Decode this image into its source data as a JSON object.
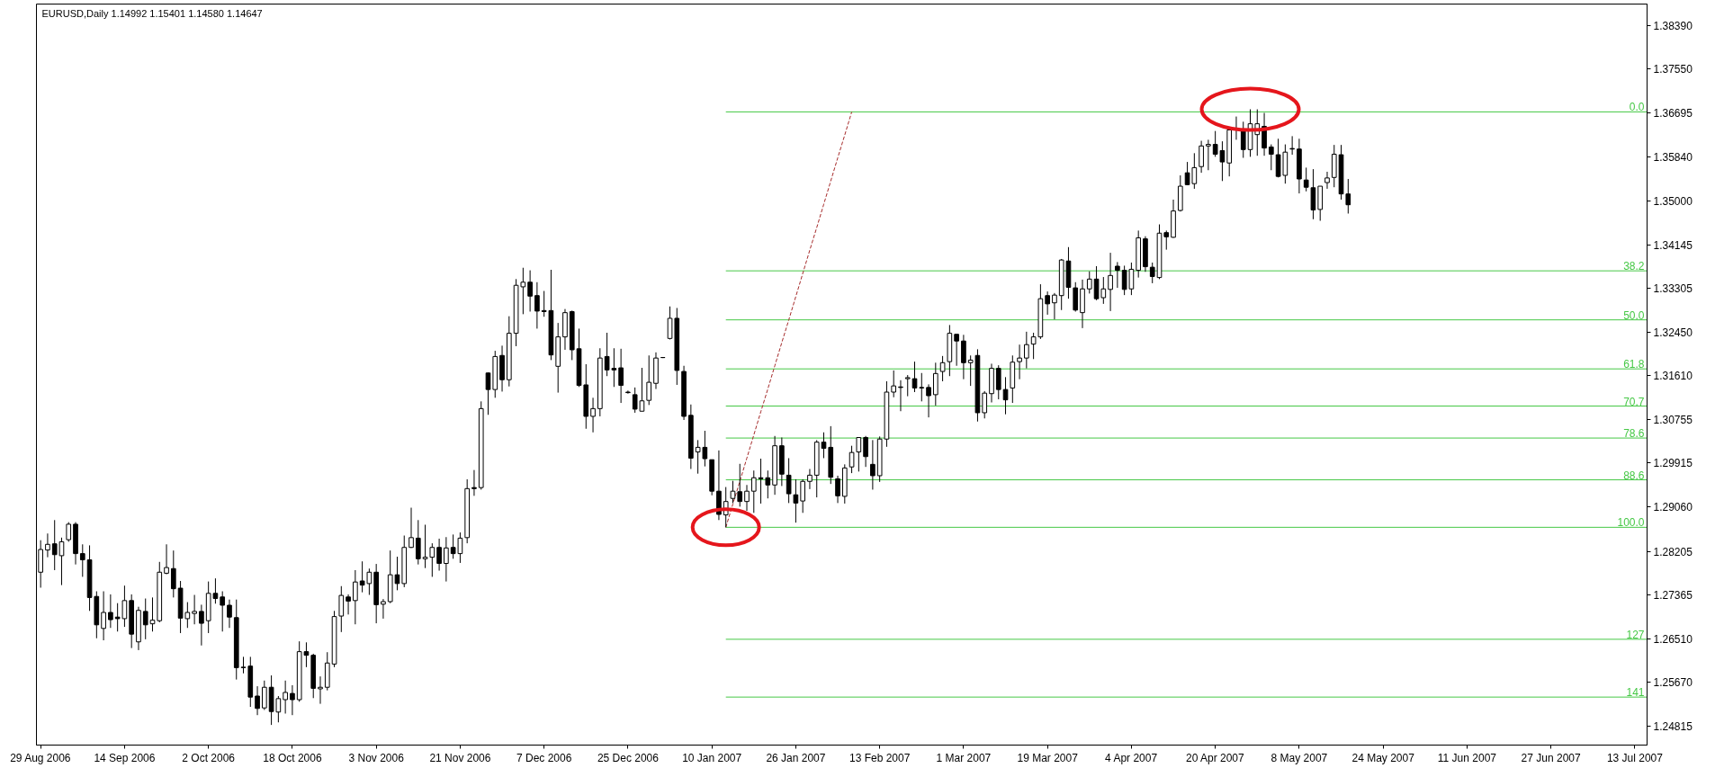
{
  "chart_data": {
    "type": "candlestick",
    "title": "EURUSD,Daily 1.14992 1.15401 1.14580 1.14647",
    "color": "#000000",
    "categories": [
      "29 Aug 2006",
      null,
      null,
      null,
      null,
      null,
      null,
      null,
      null,
      null,
      null,
      null,
      "14 Sep 2006",
      null,
      null,
      null,
      null,
      null,
      null,
      null,
      null,
      null,
      null,
      null,
      "2 Oct 2006",
      null,
      null,
      null,
      null,
      null,
      null,
      null,
      null,
      null,
      null,
      null,
      "18 Oct 2006",
      null,
      null,
      null,
      null,
      null,
      null,
      null,
      null,
      null,
      null,
      null,
      "3 Nov 2006",
      null,
      null,
      null,
      null,
      null,
      null,
      null,
      null,
      null,
      null,
      null,
      "21 Nov 2006",
      null,
      null,
      null,
      null,
      null,
      null,
      null,
      null,
      null,
      null,
      null,
      "7 Dec 2006",
      null,
      null,
      null,
      null,
      null,
      null,
      null,
      null,
      null,
      null,
      null,
      "25 Dec 2006",
      null,
      null,
      null,
      null,
      null,
      null,
      null,
      null,
      null,
      null,
      null,
      "10 Jan 2007",
      null,
      null,
      null,
      null,
      null,
      null,
      null,
      null,
      null,
      null,
      null,
      "26 Jan 2007",
      null,
      null,
      null,
      null,
      null,
      null,
      null,
      null,
      null,
      null,
      null,
      "13 Feb 2007",
      null,
      null,
      null,
      null,
      null,
      null,
      null,
      null,
      null,
      null,
      null,
      "1 Mar 2007",
      null,
      null,
      null,
      null,
      null,
      null,
      null,
      null,
      null,
      null,
      null,
      "19 Mar 2007",
      null,
      null,
      null,
      null,
      null,
      null,
      null,
      null,
      null,
      null,
      null,
      "4 Apr 2007",
      null,
      null,
      null,
      null,
      null,
      null,
      null,
      null,
      null,
      null,
      null,
      "20 Apr 2007",
      null,
      null,
      null,
      null,
      null,
      null,
      null,
      null,
      null,
      null,
      null,
      "8 May 2007",
      null,
      null,
      null,
      null,
      null,
      null,
      null,
      null,
      null,
      null,
      null,
      "24 May 2007",
      null,
      null,
      null,
      null,
      null,
      null,
      null,
      null,
      null,
      null,
      null,
      "11 Jun 2007",
      null,
      null,
      null,
      null,
      null,
      null,
      null,
      null,
      null,
      null,
      null,
      "27 Jun 2007",
      null,
      null,
      null,
      null,
      null,
      null,
      null,
      null,
      null,
      null,
      null,
      "13 Jul 2007",
      null
    ],
    "ohlc": [
      [
        1.278,
        1.2842,
        1.275,
        1.2824
      ],
      [
        1.2823,
        1.2855,
        1.2809,
        1.2834
      ],
      [
        1.2835,
        1.2881,
        1.2784,
        1.2814
      ],
      [
        1.2812,
        1.2847,
        1.2755,
        1.2839
      ],
      [
        1.2843,
        1.2877,
        1.2839,
        1.2873
      ],
      [
        1.2873,
        1.2877,
        1.2795,
        1.2816
      ],
      [
        1.2816,
        1.2834,
        1.2771,
        1.2804
      ],
      [
        1.2804,
        1.2832,
        1.2705,
        1.2731
      ],
      [
        1.2733,
        1.2743,
        1.2652,
        1.2678
      ],
      [
        1.2671,
        1.2743,
        1.2648,
        1.2702
      ],
      [
        1.2702,
        1.2737,
        1.2672,
        1.2688
      ],
      [
        1.2693,
        1.272,
        1.2665,
        1.269
      ],
      [
        1.269,
        1.2754,
        1.2674,
        1.2725
      ],
      [
        1.2725,
        1.2737,
        1.2633,
        1.266
      ],
      [
        1.2645,
        1.2713,
        1.2629,
        1.2706
      ],
      [
        1.2704,
        1.2729,
        1.265,
        1.2678
      ],
      [
        1.268,
        1.2731,
        1.2665,
        1.2687
      ],
      [
        1.2686,
        1.28,
        1.2683,
        1.278
      ],
      [
        1.2778,
        1.2834,
        1.2776,
        1.2789
      ],
      [
        1.2787,
        1.2822,
        1.2731,
        1.2748
      ],
      [
        1.2749,
        1.2763,
        1.2662,
        1.2691
      ],
      [
        1.269,
        1.2722,
        1.2672,
        1.2702
      ],
      [
        1.27,
        1.2736,
        1.2679,
        1.2704
      ],
      [
        1.2704,
        1.2717,
        1.2638,
        1.2681
      ],
      [
        1.2686,
        1.2762,
        1.2662,
        1.2739
      ],
      [
        1.2739,
        1.2768,
        1.2719,
        1.2729
      ],
      [
        1.2732,
        1.2743,
        1.2665,
        1.2716
      ],
      [
        1.2716,
        1.2727,
        1.2672,
        1.2693
      ],
      [
        1.2692,
        1.2727,
        1.2572,
        1.2595
      ],
      [
        1.2595,
        1.2616,
        1.2584,
        1.2596
      ],
      [
        1.2598,
        1.2616,
        1.2519,
        1.2538
      ],
      [
        1.254,
        1.2559,
        1.2503,
        1.2516
      ],
      [
        1.2517,
        1.257,
        1.2513,
        1.2557
      ],
      [
        1.2557,
        1.258,
        1.2484,
        1.251
      ],
      [
        1.2509,
        1.254,
        1.2489,
        1.2535
      ],
      [
        1.2533,
        1.257,
        1.2506,
        1.2547
      ],
      [
        1.2545,
        1.2561,
        1.2503,
        1.2533
      ],
      [
        1.2533,
        1.2646,
        1.2529,
        1.2626
      ],
      [
        1.2626,
        1.2644,
        1.2596,
        1.2619
      ],
      [
        1.2619,
        1.2622,
        1.2536,
        1.2555
      ],
      [
        1.2554,
        1.2578,
        1.2525,
        1.2557
      ],
      [
        1.2557,
        1.2625,
        1.2551,
        1.2604
      ],
      [
        1.2602,
        1.2705,
        1.2596,
        1.2694
      ],
      [
        1.2695,
        1.2753,
        1.2664,
        1.2735
      ],
      [
        1.2732,
        1.2737,
        1.2698,
        1.2724
      ],
      [
        1.2725,
        1.2784,
        1.2679,
        1.2761
      ],
      [
        1.2763,
        1.2801,
        1.2741,
        1.2755
      ],
      [
        1.2758,
        1.2787,
        1.2736,
        1.278
      ],
      [
        1.278,
        1.2796,
        1.2681,
        1.2717
      ],
      [
        1.2718,
        1.2728,
        1.269,
        1.2723
      ],
      [
        1.2723,
        1.2822,
        1.272,
        1.2775
      ],
      [
        1.2775,
        1.281,
        1.2745,
        1.2758
      ],
      [
        1.2758,
        1.2851,
        1.2751,
        1.2828
      ],
      [
        1.2828,
        1.2905,
        1.2827,
        1.2847
      ],
      [
        1.2846,
        1.2881,
        1.2795,
        1.2806
      ],
      [
        1.2806,
        1.2872,
        1.2788,
        1.2809
      ],
      [
        1.2809,
        1.2836,
        1.2771,
        1.2828
      ],
      [
        1.2828,
        1.2845,
        1.2783,
        1.2797
      ],
      [
        1.2797,
        1.2848,
        1.2762,
        1.2827
      ],
      [
        1.2828,
        1.2853,
        1.2806,
        1.2816
      ],
      [
        1.2816,
        1.2857,
        1.2798,
        1.2846
      ],
      [
        1.2847,
        1.296,
        1.2836,
        1.2942
      ],
      [
        1.2944,
        1.2978,
        1.2928,
        1.2942
      ],
      [
        1.2944,
        1.3111,
        1.294,
        1.3097
      ],
      [
        1.3166,
        1.3167,
        1.3085,
        1.3134
      ],
      [
        1.3134,
        1.3209,
        1.3118,
        1.3198
      ],
      [
        1.32,
        1.3219,
        1.313,
        1.3153
      ],
      [
        1.3153,
        1.3276,
        1.314,
        1.3243
      ],
      [
        1.3243,
        1.3348,
        1.3218,
        1.3336
      ],
      [
        1.3333,
        1.337,
        1.328,
        1.3342
      ],
      [
        1.3342,
        1.3365,
        1.3285,
        1.3315
      ],
      [
        1.3316,
        1.3342,
        1.3252,
        1.3286
      ],
      [
        1.3287,
        1.3325,
        1.3275,
        1.3285
      ],
      [
        1.3287,
        1.3366,
        1.3191,
        1.3201
      ],
      [
        1.3179,
        1.3263,
        1.3128,
        1.3236
      ],
      [
        1.3236,
        1.329,
        1.3211,
        1.3283
      ],
      [
        1.3285,
        1.3287,
        1.3191,
        1.3211
      ],
      [
        1.3213,
        1.3252,
        1.3139,
        1.3142
      ],
      [
        1.3143,
        1.3183,
        1.3058,
        1.3082
      ],
      [
        1.3082,
        1.3118,
        1.3051,
        1.3097
      ],
      [
        1.3097,
        1.3214,
        1.3082,
        1.3195
      ],
      [
        1.3198,
        1.3244,
        1.316,
        1.3172
      ],
      [
        1.3175,
        1.3214,
        1.3139,
        1.3172
      ],
      [
        1.3176,
        1.3213,
        1.3108,
        1.3142
      ],
      [
        1.3129,
        1.3132,
        1.3126,
        1.3128
      ],
      [
        1.3124,
        1.3138,
        1.3089,
        1.3096
      ],
      [
        1.3092,
        1.3176,
        1.3092,
        1.3112
      ],
      [
        1.3113,
        1.32,
        1.3104,
        1.3148
      ],
      [
        1.3146,
        1.3206,
        1.3135,
        1.3195
      ],
      [
        1.3196,
        1.3197,
        1.3195,
        1.3196
      ],
      [
        1.3233,
        1.3295,
        1.3231,
        1.3272
      ],
      [
        1.3272,
        1.3292,
        1.3143,
        1.3171
      ],
      [
        1.3169,
        1.318,
        1.3075,
        1.3082
      ],
      [
        1.3084,
        1.3105,
        1.298,
        1.3001
      ],
      [
        1.3013,
        1.3036,
        1.2971,
        1.3022
      ],
      [
        1.3022,
        1.3054,
        1.2985,
        1.3
      ],
      [
        1.2998,
        1.2998,
        1.2929,
        1.2937
      ],
      [
        1.2937,
        1.3016,
        1.2881,
        1.2892
      ],
      [
        1.2891,
        1.2945,
        1.2867,
        1.2917
      ],
      [
        1.2923,
        1.2957,
        1.2914,
        1.2937
      ],
      [
        1.2936,
        1.299,
        1.2907,
        1.2917
      ],
      [
        1.2917,
        1.2949,
        1.2899,
        1.2937
      ],
      [
        1.2937,
        1.2977,
        1.2895,
        1.2963
      ],
      [
        1.2963,
        1.3,
        1.2913,
        1.2961
      ],
      [
        1.2963,
        1.2977,
        1.2923,
        1.2949
      ],
      [
        1.2949,
        1.3044,
        1.293,
        1.3025
      ],
      [
        1.3025,
        1.3041,
        1.2947,
        1.297
      ],
      [
        1.2968,
        1.3001,
        1.2914,
        1.2932
      ],
      [
        1.293,
        1.296,
        1.2876,
        1.2914
      ],
      [
        1.2918,
        1.296,
        1.2895,
        1.2956
      ],
      [
        1.2956,
        1.298,
        1.2941,
        1.2968
      ],
      [
        1.2968,
        1.3036,
        1.2925,
        1.3032
      ],
      [
        1.3032,
        1.3051,
        1.3001,
        1.302
      ],
      [
        1.3022,
        1.3063,
        1.2951,
        1.2964
      ],
      [
        1.2961,
        1.2967,
        1.2914,
        1.2928
      ],
      [
        1.2927,
        1.2989,
        1.2913,
        1.2982
      ],
      [
        1.2984,
        1.3025,
        1.2972,
        1.3012
      ],
      [
        1.3013,
        1.3041,
        1.2975,
        1.3041
      ],
      [
        1.3041,
        1.3044,
        1.2984,
        1.3004
      ],
      [
        1.2989,
        1.3036,
        1.294,
        1.2967
      ],
      [
        1.2967,
        1.3043,
        1.2955,
        1.3038
      ],
      [
        1.3038,
        1.315,
        1.3023,
        1.3129
      ],
      [
        1.3129,
        1.3171,
        1.3119,
        1.3141
      ],
      [
        1.3139,
        1.3152,
        1.3092,
        1.3138
      ],
      [
        1.3155,
        1.3162,
        1.3121,
        1.3157
      ],
      [
        1.3155,
        1.3188,
        1.3129,
        1.3137
      ],
      [
        1.3138,
        1.3166,
        1.3111,
        1.3137
      ],
      [
        1.3138,
        1.3144,
        1.308,
        1.3122
      ],
      [
        1.3124,
        1.3186,
        1.3103,
        1.3165
      ],
      [
        1.3169,
        1.3199,
        1.315,
        1.3186
      ],
      [
        1.3188,
        1.3259,
        1.316,
        1.3243
      ],
      [
        1.3241,
        1.3241,
        1.318,
        1.3228
      ],
      [
        1.3228,
        1.324,
        1.3154,
        1.3186
      ],
      [
        1.3186,
        1.32,
        1.3141,
        1.3191
      ],
      [
        1.32,
        1.3212,
        1.3072,
        1.3089
      ],
      [
        1.3089,
        1.3131,
        1.3078,
        1.3127
      ],
      [
        1.3126,
        1.3184,
        1.3109,
        1.3175
      ],
      [
        1.3175,
        1.3181,
        1.3115,
        1.3134
      ],
      [
        1.3134,
        1.3158,
        1.3086,
        1.3114
      ],
      [
        1.3137,
        1.32,
        1.3108,
        1.3187
      ],
      [
        1.3188,
        1.3221,
        1.3154,
        1.3195
      ],
      [
        1.3195,
        1.3246,
        1.3175,
        1.3221
      ],
      [
        1.3222,
        1.3244,
        1.3193,
        1.3236
      ],
      [
        1.3236,
        1.3338,
        1.3232,
        1.331
      ],
      [
        1.3316,
        1.3324,
        1.3279,
        1.33
      ],
      [
        1.3302,
        1.3321,
        1.327,
        1.3317
      ],
      [
        1.3316,
        1.3387,
        1.3288,
        1.3385
      ],
      [
        1.3383,
        1.341,
        1.331,
        1.3332
      ],
      [
        1.3331,
        1.3342,
        1.3285,
        1.3288
      ],
      [
        1.3283,
        1.3347,
        1.3253,
        1.3329
      ],
      [
        1.3329,
        1.3363,
        1.332,
        1.3348
      ],
      [
        1.3348,
        1.3373,
        1.3307,
        1.331
      ],
      [
        1.3312,
        1.3352,
        1.33,
        1.3329
      ],
      [
        1.3328,
        1.3399,
        1.3286,
        1.3355
      ],
      [
        1.3373,
        1.3381,
        1.3331,
        1.3365
      ],
      [
        1.3365,
        1.3374,
        1.3317,
        1.3328
      ],
      [
        1.3329,
        1.338,
        1.3317,
        1.3367
      ],
      [
        1.3365,
        1.3442,
        1.3351,
        1.3428
      ],
      [
        1.3426,
        1.3431,
        1.3362,
        1.3372
      ],
      [
        1.3371,
        1.338,
        1.334,
        1.3353
      ],
      [
        1.3351,
        1.3454,
        1.3348,
        1.3437
      ],
      [
        1.3438,
        1.3442,
        1.3405,
        1.343
      ],
      [
        1.3429,
        1.3502,
        1.3428,
        1.348
      ],
      [
        1.3481,
        1.3549,
        1.3479,
        1.3528
      ],
      [
        1.3554,
        1.3575,
        1.353,
        1.3531
      ],
      [
        1.3533,
        1.3592,
        1.3523,
        1.3564
      ],
      [
        1.3566,
        1.3616,
        1.3554,
        1.3606
      ],
      [
        1.3606,
        1.3618,
        1.3559,
        1.3609
      ],
      [
        1.3609,
        1.3635,
        1.3585,
        1.359
      ],
      [
        1.3597,
        1.3615,
        1.3538,
        1.3575
      ],
      [
        1.3573,
        1.3642,
        1.3547,
        1.3637
      ],
      [
        1.3639,
        1.3663,
        1.3618,
        1.3637
      ],
      [
        1.3637,
        1.3653,
        1.3583,
        1.3599
      ],
      [
        1.3599,
        1.3677,
        1.3585,
        1.3649
      ],
      [
        1.3628,
        1.3677,
        1.3587,
        1.3649
      ],
      [
        1.3644,
        1.367,
        1.3587,
        1.3602
      ],
      [
        1.3604,
        1.3609,
        1.3559,
        1.359
      ],
      [
        1.3589,
        1.362,
        1.3545,
        1.3547
      ],
      [
        1.3549,
        1.3609,
        1.3533,
        1.3594
      ],
      [
        1.3601,
        1.3625,
        1.3589,
        1.36
      ],
      [
        1.36,
        1.362,
        1.3514,
        1.3542
      ],
      [
        1.354,
        1.3564,
        1.3518,
        1.3526
      ],
      [
        1.3525,
        1.3561,
        1.3464,
        1.3482
      ],
      [
        1.3483,
        1.3528,
        1.3461,
        1.3528
      ],
      [
        1.3535,
        1.3556,
        1.3523,
        1.3544
      ],
      [
        1.3545,
        1.3608,
        1.3526,
        1.359
      ],
      [
        1.3589,
        1.3608,
        1.3502,
        1.3513
      ],
      [
        1.3513,
        1.3542,
        1.3475,
        1.3492
      ],
      null,
      null,
      null,
      null,
      null,
      null,
      null,
      null,
      null,
      null,
      null,
      null,
      null,
      null,
      null,
      null,
      null,
      null,
      null,
      null,
      null,
      null,
      null,
      null,
      null,
      null,
      null,
      null,
      null,
      null,
      null,
      null,
      null,
      null,
      null,
      null,
      null,
      null,
      null,
      null,
      null,
      null
    ],
    "series": [
      {
        "type": "line",
        "color": "#a52a2a",
        "line_style": "dotted",
        "values": [
          null,
          null,
          null,
          null,
          null,
          null,
          null,
          null,
          null,
          null,
          null,
          null,
          null,
          null,
          null,
          null,
          null,
          null,
          null,
          null,
          null,
          null,
          null,
          null,
          null,
          null,
          null,
          null,
          null,
          null,
          null,
          null,
          null,
          null,
          null,
          null,
          null,
          null,
          null,
          null,
          null,
          null,
          null,
          null,
          null,
          null,
          null,
          null,
          null,
          null,
          null,
          null,
          null,
          null,
          null,
          null,
          null,
          null,
          null,
          null,
          null,
          null,
          null,
          null,
          null,
          null,
          null,
          null,
          null,
          null,
          null,
          null,
          null,
          null,
          null,
          null,
          null,
          null,
          null,
          null,
          null,
          null,
          null,
          null,
          null,
          null,
          null,
          null,
          null,
          null,
          null,
          null,
          null,
          null,
          null,
          null,
          null,
          null,
          1.2867,
          1.2912,
          1.2956,
          1.3001,
          1.3046,
          1.3091,
          1.3135,
          1.318,
          1.3225,
          1.3269,
          1.3314,
          1.3359,
          1.3404,
          1.3448,
          1.3493,
          1.3538,
          1.3583,
          1.3627,
          1.3672,
          null,
          null,
          null,
          null,
          null,
          null,
          null,
          null,
          null,
          null,
          null,
          null,
          null,
          null,
          null,
          null,
          null,
          null,
          null,
          null,
          null,
          null,
          null,
          null,
          null,
          null,
          null,
          null,
          null,
          null,
          null,
          null,
          null,
          null,
          null,
          null,
          null,
          null,
          null,
          null,
          null,
          null,
          null,
          null,
          null,
          null,
          null,
          null,
          null,
          null,
          null,
          null,
          null,
          null,
          null,
          null,
          null,
          null,
          null,
          null,
          null,
          null,
          null,
          null,
          null,
          null,
          null,
          null,
          null,
          null,
          null,
          null,
          null,
          null,
          null,
          null,
          null,
          null,
          null,
          null,
          null,
          null,
          null,
          null,
          null,
          null,
          null,
          null,
          null,
          null,
          null,
          null,
          null,
          null,
          null,
          null,
          null,
          null,
          null,
          null,
          null,
          null,
          null,
          null,
          null,
          null,
          null,
          null,
          null,
          null,
          null,
          null,
          null
        ]
      }
    ],
    "ref_lines": [
      {
        "axis": "y",
        "value": 1.3672,
        "color": "#46c846"
      },
      {
        "axis": "y",
        "value": 1.3364,
        "color": "#46c846"
      },
      {
        "axis": "y",
        "value": 1.3269,
        "color": "#46c846"
      },
      {
        "axis": "y",
        "value": 1.3174,
        "color": "#46c846"
      },
      {
        "axis": "y",
        "value": 1.3102,
        "color": "#46c846"
      },
      {
        "axis": "y",
        "value": 1.304,
        "color": "#46c846"
      },
      {
        "axis": "y",
        "value": 1.2959,
        "color": "#46c846"
      },
      {
        "axis": "y",
        "value": 1.2867,
        "color": "#46c846"
      },
      {
        "axis": "y",
        "value": 1.265,
        "color": "#46c846"
      },
      {
        "axis": "y",
        "value": 1.2538,
        "color": "#46c846"
      }
    ],
    "annotations": [
      {
        "text": "0.0",
        "y": 1.3672
      },
      {
        "text": "38.2",
        "y": 1.3364
      },
      {
        "text": "50.0",
        "y": 1.3269
      },
      {
        "text": "61.8",
        "y": 1.3174
      },
      {
        "text": "70.7",
        "y": 1.3102
      },
      {
        "text": "78.6",
        "y": 1.304
      },
      {
        "text": "88.6",
        "y": 1.2959
      },
      {
        "text": "100.0",
        "y": 1.2867
      },
      {
        "text": "127",
        "y": 1.265
      },
      {
        "text": "141",
        "y": 1.2538
      }
    ],
    "ylim": [
      1.2445,
      1.3881
    ],
    "yticks": [
      {
        "value": 1.24815,
        "label": "1.24815"
      },
      {
        "value": 1.2567,
        "label": "1.25670"
      },
      {
        "value": 1.2651,
        "label": "1.26510"
      },
      {
        "value": 1.27365,
        "label": "1.27365"
      },
      {
        "value": 1.28205,
        "label": "1.28205"
      },
      {
        "value": 1.2906,
        "label": "1.29060"
      },
      {
        "value": 1.29915,
        "label": "1.29915"
      },
      {
        "value": 1.30755,
        "label": "1.30755"
      },
      {
        "value": 1.3161,
        "label": "1.31610"
      },
      {
        "value": 1.3245,
        "label": "1.32450"
      },
      {
        "value": 1.33305,
        "label": "1.33305"
      },
      {
        "value": 1.34145,
        "label": "1.34145"
      },
      {
        "value": 1.35,
        "label": "1.35000"
      },
      {
        "value": 1.3584,
        "label": "1.35840"
      },
      {
        "value": 1.36695,
        "label": "1.36695"
      },
      {
        "value": 1.3755,
        "label": "1.37550"
      },
      {
        "value": 1.3839,
        "label": "1.38390"
      }
    ]
  }
}
